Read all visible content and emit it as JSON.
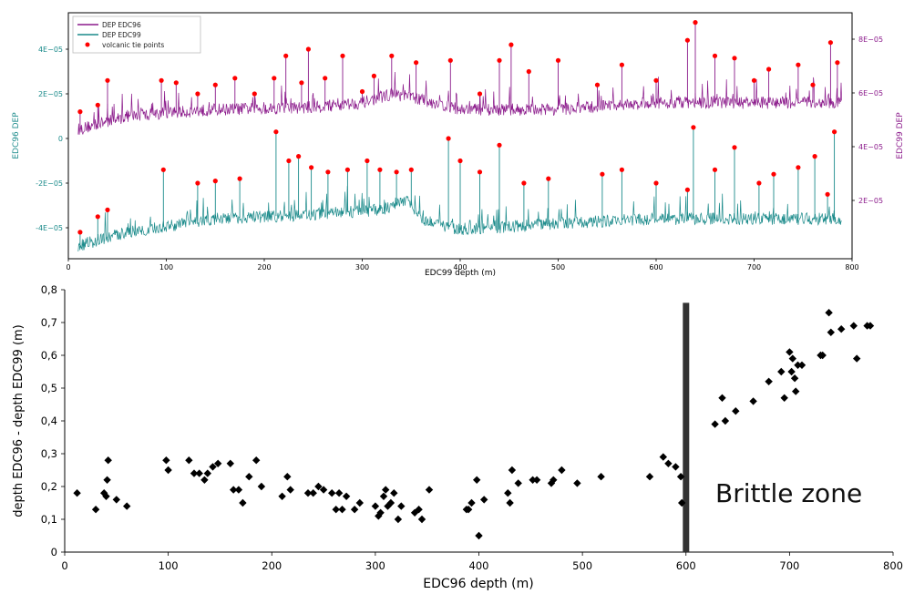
{
  "colors": {
    "edc96": "#1a8a8a",
    "edc99": "#8b1a8b",
    "tie_points": "#ff0000",
    "scatter_points": "#000000",
    "brittle_bar": "#333333",
    "axis": "#000000"
  },
  "chart_data": [
    {
      "type": "line",
      "panel": "top",
      "xlabel": "EDC99 depth (m)",
      "ylabel_left": "EDC96 DEP",
      "ylabel_right": "EDC99 DEP",
      "xlim": [
        0,
        800
      ],
      "xticks": [
        "0",
        "100",
        "200",
        "300",
        "400",
        "500",
        "600",
        "700",
        "800"
      ],
      "yticks_left": [
        "-4E−05",
        "-2E−05",
        "0",
        "2E−05",
        "4E−05"
      ],
      "yticks_left_values": [
        -4,
        -2,
        0,
        2,
        4
      ],
      "yticks_right": [
        "2E−05",
        "4E−05",
        "6E−05",
        "8E−05"
      ],
      "yticks_right_values": [
        2,
        4,
        6,
        8
      ],
      "legend_position": "top-left",
      "series": [
        {
          "name": "DEP EDC96",
          "color": "#8b1a8b",
          "baseline": [
            [
              10,
              0.4
            ],
            [
              60,
              1.0
            ],
            [
              150,
              1.3
            ],
            [
              250,
              1.4
            ],
            [
              300,
              1.6
            ],
            [
              330,
              2.0
            ],
            [
              355,
              1.8
            ],
            [
              400,
              1.3
            ],
            [
              500,
              1.3
            ],
            [
              600,
              1.6
            ],
            [
              700,
              1.6
            ],
            [
              790,
              1.6
            ]
          ],
          "peaks": [
            [
              12,
              1.2
            ],
            [
              30,
              1.5
            ],
            [
              40,
              2.6
            ],
            [
              95,
              2.6
            ],
            [
              110,
              2.5
            ],
            [
              132,
              2.0
            ],
            [
              150,
              2.4
            ],
            [
              170,
              2.7
            ],
            [
              190,
              2.0
            ],
            [
              210,
              2.7
            ],
            [
              222,
              3.7
            ],
            [
              238,
              2.5
            ],
            [
              245,
              4.0
            ],
            [
              262,
              2.7
            ],
            [
              280,
              3.7
            ],
            [
              300,
              2.1
            ],
            [
              312,
              2.8
            ],
            [
              330,
              3.7
            ],
            [
              355,
              3.4
            ],
            [
              390,
              3.5
            ],
            [
              420,
              2.0
            ],
            [
              440,
              3.5
            ],
            [
              452,
              4.2
            ],
            [
              470,
              3.0
            ],
            [
              500,
              3.5
            ],
            [
              540,
              2.4
            ],
            [
              565,
              3.3
            ],
            [
              600,
              2.6
            ],
            [
              632,
              4.4
            ],
            [
              640,
              5.2
            ],
            [
              660,
              3.7
            ],
            [
              680,
              3.6
            ],
            [
              700,
              2.6
            ],
            [
              715,
              3.1
            ],
            [
              745,
              3.3
            ],
            [
              760,
              2.4
            ],
            [
              778,
              4.3
            ],
            [
              785,
              3.4
            ]
          ]
        },
        {
          "name": "DEP EDC99",
          "color": "#1a8a8a",
          "baseline": [
            [
              10,
              -4.8
            ],
            [
              60,
              -4.2
            ],
            [
              150,
              -3.6
            ],
            [
              250,
              -3.4
            ],
            [
              320,
              -3.2
            ],
            [
              345,
              -2.7
            ],
            [
              360,
              -3.6
            ],
            [
              400,
              -4.1
            ],
            [
              500,
              -3.8
            ],
            [
              600,
              -3.6
            ],
            [
              700,
              -3.6
            ],
            [
              790,
              -3.6
            ]
          ],
          "peaks": [
            [
              12,
              -4.2
            ],
            [
              30,
              -3.5
            ],
            [
              40,
              -3.2
            ],
            [
              97,
              -1.4
            ],
            [
              132,
              -2.0
            ],
            [
              150,
              -1.9
            ],
            [
              175,
              -1.8
            ],
            [
              212,
              0.3
            ],
            [
              225,
              -1.0
            ],
            [
              235,
              -0.8
            ],
            [
              248,
              -1.3
            ],
            [
              265,
              -1.5
            ],
            [
              285,
              -1.4
            ],
            [
              305,
              -1.0
            ],
            [
              318,
              -1.4
            ],
            [
              335,
              -1.5
            ],
            [
              350,
              -1.4
            ],
            [
              388,
              0.0
            ],
            [
              400,
              -1.0
            ],
            [
              420,
              -1.5
            ],
            [
              440,
              -0.3
            ],
            [
              465,
              -2.0
            ],
            [
              490,
              -1.8
            ],
            [
              545,
              -1.6
            ],
            [
              565,
              -1.4
            ],
            [
              600,
              -2.0
            ],
            [
              632,
              -2.3
            ],
            [
              638,
              0.5
            ],
            [
              660,
              -1.4
            ],
            [
              680,
              -0.4
            ],
            [
              705,
              -2.0
            ],
            [
              720,
              -1.6
            ],
            [
              745,
              -1.3
            ],
            [
              762,
              -0.8
            ],
            [
              775,
              -2.5
            ],
            [
              782,
              0.3
            ]
          ]
        },
        {
          "name": "volcanic tie points",
          "color": "#ff0000",
          "marker": "circle"
        }
      ]
    },
    {
      "type": "scatter",
      "panel": "bottom",
      "xlabel": "EDC96 depth (m)",
      "ylabel": "depth EDC96 - depth EDC99 (m)",
      "xlim": [
        0,
        800
      ],
      "ylim": [
        0,
        0.8
      ],
      "xticks": [
        "0",
        "100",
        "200",
        "300",
        "400",
        "500",
        "600",
        "700",
        "800"
      ],
      "xticks_values": [
        0,
        100,
        200,
        300,
        400,
        500,
        600,
        700,
        800
      ],
      "yticks": [
        "0",
        "0,1",
        "0,2",
        "0,3",
        "0,4",
        "0,5",
        "0,6",
        "0,7",
        "0,8"
      ],
      "yticks_values": [
        0,
        0.1,
        0.2,
        0.3,
        0.4,
        0.5,
        0.6,
        0.7,
        0.8
      ],
      "annotation": "Brittle zone",
      "brittle_marker": {
        "x": 600,
        "y_from": 0,
        "y_to": 0.76
      },
      "points": [
        [
          12,
          0.18
        ],
        [
          30,
          0.13
        ],
        [
          38,
          0.18
        ],
        [
          40,
          0.17
        ],
        [
          41,
          0.22
        ],
        [
          42,
          0.28
        ],
        [
          50,
          0.16
        ],
        [
          60,
          0.14
        ],
        [
          98,
          0.28
        ],
        [
          100,
          0.25
        ],
        [
          120,
          0.28
        ],
        [
          125,
          0.24
        ],
        [
          130,
          0.24
        ],
        [
          135,
          0.22
        ],
        [
          138,
          0.24
        ],
        [
          143,
          0.26
        ],
        [
          148,
          0.27
        ],
        [
          160,
          0.27
        ],
        [
          163,
          0.19
        ],
        [
          168,
          0.19
        ],
        [
          172,
          0.15
        ],
        [
          178,
          0.23
        ],
        [
          185,
          0.28
        ],
        [
          190,
          0.2
        ],
        [
          210,
          0.17
        ],
        [
          215,
          0.23
        ],
        [
          218,
          0.19
        ],
        [
          235,
          0.18
        ],
        [
          240,
          0.18
        ],
        [
          245,
          0.2
        ],
        [
          250,
          0.19
        ],
        [
          258,
          0.18
        ],
        [
          262,
          0.13
        ],
        [
          265,
          0.18
        ],
        [
          268,
          0.13
        ],
        [
          272,
          0.17
        ],
        [
          280,
          0.13
        ],
        [
          285,
          0.15
        ],
        [
          300,
          0.14
        ],
        [
          303,
          0.11
        ],
        [
          305,
          0.12
        ],
        [
          308,
          0.17
        ],
        [
          310,
          0.19
        ],
        [
          312,
          0.14
        ],
        [
          315,
          0.15
        ],
        [
          318,
          0.18
        ],
        [
          322,
          0.1
        ],
        [
          325,
          0.14
        ],
        [
          338,
          0.12
        ],
        [
          342,
          0.13
        ],
        [
          345,
          0.1
        ],
        [
          352,
          0.19
        ],
        [
          388,
          0.13
        ],
        [
          390,
          0.13
        ],
        [
          393,
          0.15
        ],
        [
          398,
          0.22
        ],
        [
          400,
          0.05
        ],
        [
          405,
          0.16
        ],
        [
          428,
          0.18
        ],
        [
          430,
          0.15
        ],
        [
          432,
          0.25
        ],
        [
          438,
          0.21
        ],
        [
          452,
          0.22
        ],
        [
          456,
          0.22
        ],
        [
          470,
          0.21
        ],
        [
          472,
          0.22
        ],
        [
          480,
          0.25
        ],
        [
          495,
          0.21
        ],
        [
          518,
          0.23
        ],
        [
          565,
          0.23
        ],
        [
          578,
          0.29
        ],
        [
          583,
          0.27
        ],
        [
          590,
          0.26
        ],
        [
          595,
          0.23
        ],
        [
          596,
          0.15
        ],
        [
          628,
          0.39
        ],
        [
          635,
          0.47
        ],
        [
          638,
          0.4
        ],
        [
          648,
          0.43
        ],
        [
          665,
          0.46
        ],
        [
          680,
          0.52
        ],
        [
          692,
          0.55
        ],
        [
          695,
          0.47
        ],
        [
          700,
          0.61
        ],
        [
          702,
          0.55
        ],
        [
          703,
          0.59
        ],
        [
          705,
          0.53
        ],
        [
          706,
          0.49
        ],
        [
          708,
          0.57
        ],
        [
          712,
          0.57
        ],
        [
          730,
          0.6
        ],
        [
          732,
          0.6
        ],
        [
          738,
          0.73
        ],
        [
          740,
          0.67
        ],
        [
          750,
          0.68
        ],
        [
          762,
          0.69
        ],
        [
          765,
          0.59
        ],
        [
          775,
          0.69
        ],
        [
          778,
          0.69
        ]
      ]
    }
  ]
}
